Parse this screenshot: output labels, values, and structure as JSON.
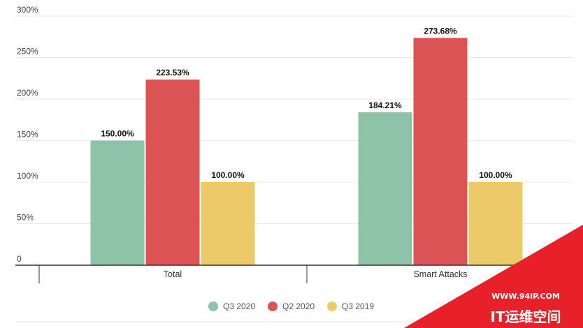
{
  "chart_data": {
    "type": "bar",
    "categories": [
      "Total",
      "Smart Attacks"
    ],
    "series": [
      {
        "name": "Q3 2020",
        "color": "#8dc3a7",
        "values": [
          150.0,
          184.21
        ]
      },
      {
        "name": "Q2 2020",
        "color": "#dc5354",
        "values": [
          223.53,
          273.68
        ]
      },
      {
        "name": "Q3 2019",
        "color": "#edca69",
        "values": [
          100.0,
          100.0
        ]
      }
    ],
    "data_labels": [
      [
        "150.00%",
        "184.21%"
      ],
      [
        "223.53%",
        "273.68%"
      ],
      [
        "100.00%",
        "100.00%"
      ]
    ],
    "y_ticks": [
      "0",
      "50%",
      "100%",
      "150%",
      "200%",
      "250%",
      "300%"
    ],
    "ylim": [
      0,
      300
    ],
    "grid": true,
    "legend_position": "bottom"
  },
  "watermark": {
    "url": "WWW.94IP.COM",
    "name": "IT运维空间",
    "color": "#e8202a"
  }
}
